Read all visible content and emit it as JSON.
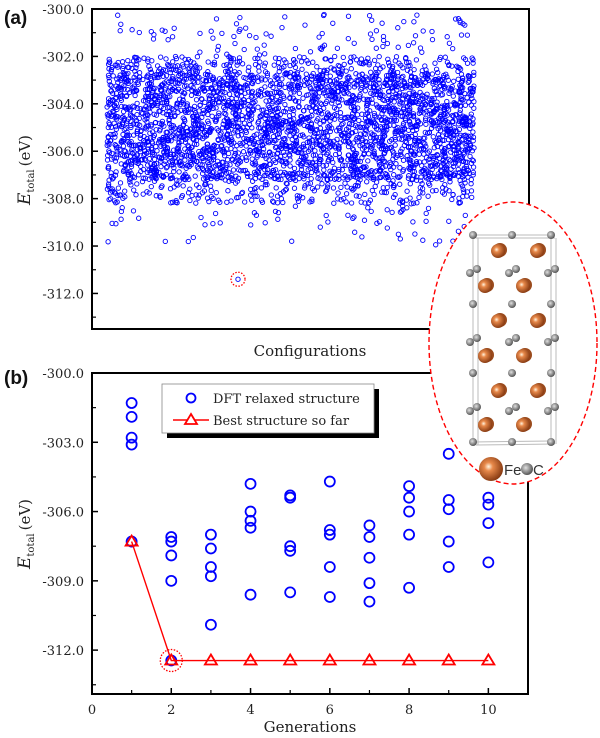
{
  "colors": {
    "dft": "#0000ff",
    "best": "#ff0000",
    "fe": "#c8642c",
    "c": "#808080",
    "highlight": "#ff0000"
  },
  "inset": {
    "fe_label": "Fe",
    "c_label": "C"
  },
  "chart_data": [
    {
      "panel_label": "(a)",
      "type": "scatter",
      "xlabel": "Configurations",
      "ylabel_main": "E",
      "ylabel_sub": "total",
      "ylabel_unit": "(eV)",
      "ylim": [
        -313.5,
        -300.0
      ],
      "yticks": [
        "-300.0",
        "-302.0",
        "-304.0",
        "-306.0",
        "-308.0",
        "-310.0",
        "-312.0"
      ],
      "ytick_values": [
        -300,
        -302,
        -304,
        -306,
        -308,
        -310,
        -312
      ],
      "xticks": [],
      "distribution": {
        "dense_band": [
          -307.2,
          -302.7
        ],
        "upper_sparse": [
          -302.7,
          -302.0
        ],
        "lower_sparse": [
          -308.2,
          -307.2
        ],
        "upper_outliers": [
          -302.0,
          -300.2
        ],
        "lower_outliers": [
          -310.0,
          -308.2
        ]
      },
      "highlighted_minimum": -311.4,
      "marker_color": "#0000ff"
    },
    {
      "panel_label": "(b)",
      "type": "scatter",
      "xlabel": "Generations",
      "ylabel_main": "E",
      "ylabel_sub": "total",
      "ylabel_unit": "(eV)",
      "xlim": [
        0,
        11
      ],
      "ylim": [
        -313.9,
        -300.0
      ],
      "xticks": [
        "0",
        "2",
        "4",
        "6",
        "8",
        "10"
      ],
      "xtick_values": [
        0,
        2,
        4,
        6,
        8,
        10
      ],
      "yticks": [
        "-300.0",
        "-303.0",
        "-306.0",
        "-309.0",
        "-312.0"
      ],
      "ytick_values": [
        -300,
        -303,
        -306,
        -309,
        -312
      ],
      "legend_position": "top-left",
      "series": [
        {
          "name": "DFT relaxed structure",
          "marker": "circle",
          "points": [
            [
              1,
              -301.3
            ],
            [
              1,
              -301.9
            ],
            [
              1,
              -302.8
            ],
            [
              1,
              -303.1
            ],
            [
              1,
              -307.3
            ],
            [
              2,
              -307.1
            ],
            [
              2,
              -307.3
            ],
            [
              2,
              -307.9
            ],
            [
              2,
              -309.0
            ],
            [
              2,
              -312.45
            ],
            [
              3,
              -307.0
            ],
            [
              3,
              -307.6
            ],
            [
              3,
              -308.4
            ],
            [
              3,
              -308.8
            ],
            [
              3,
              -310.9
            ],
            [
              4,
              -304.8
            ],
            [
              4,
              -306.0
            ],
            [
              4,
              -306.4
            ],
            [
              4,
              -306.7
            ],
            [
              4,
              -309.6
            ],
            [
              5,
              -305.3
            ],
            [
              5,
              -305.4
            ],
            [
              5,
              -307.5
            ],
            [
              5,
              -307.7
            ],
            [
              5,
              -309.5
            ],
            [
              6,
              -304.7
            ],
            [
              6,
              -306.8
            ],
            [
              6,
              -307.0
            ],
            [
              6,
              -308.4
            ],
            [
              6,
              -309.7
            ],
            [
              7,
              -306.6
            ],
            [
              7,
              -307.1
            ],
            [
              7,
              -308.0
            ],
            [
              7,
              -309.1
            ],
            [
              7,
              -309.9
            ],
            [
              8,
              -304.9
            ],
            [
              8,
              -305.4
            ],
            [
              8,
              -306.0
            ],
            [
              8,
              -307.0
            ],
            [
              8,
              -309.3
            ],
            [
              9,
              -303.5
            ],
            [
              9,
              -305.5
            ],
            [
              9,
              -305.9
            ],
            [
              9,
              -307.3
            ],
            [
              9,
              -308.4
            ],
            [
              10,
              -305.4
            ],
            [
              10,
              -305.7
            ],
            [
              10,
              -306.5
            ],
            [
              10,
              -308.2
            ]
          ]
        },
        {
          "name": "Best structure so far",
          "marker": "triangle-line",
          "x": [
            1,
            2,
            3,
            4,
            5,
            6,
            7,
            8,
            9,
            10
          ],
          "y": [
            -307.3,
            -312.45,
            -312.45,
            -312.45,
            -312.45,
            -312.45,
            -312.45,
            -312.45,
            -312.45,
            -312.45
          ]
        }
      ],
      "highlighted_point": [
        2,
        -312.45
      ]
    }
  ]
}
